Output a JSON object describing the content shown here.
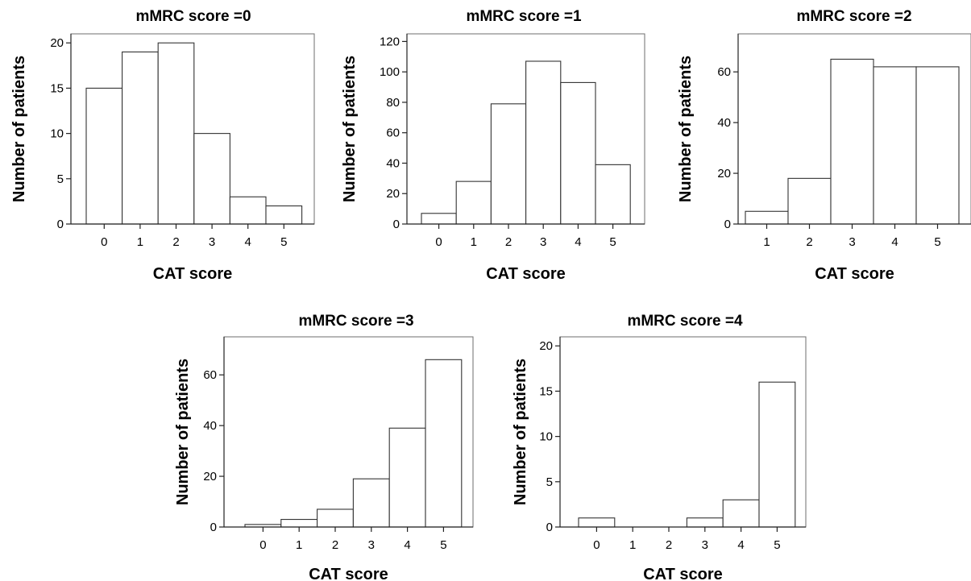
{
  "chart_data": [
    {
      "type": "bar",
      "title": "mMRC score =0",
      "xlabel": "CAT score",
      "ylabel": "Number of patients",
      "categories": [
        "0",
        "1",
        "2",
        "3",
        "4",
        "5"
      ],
      "values": [
        15,
        19,
        20,
        10,
        3,
        2
      ],
      "ylim": [
        0,
        21
      ],
      "yticks": [
        0,
        5,
        10,
        15,
        20
      ]
    },
    {
      "type": "bar",
      "title": "mMRC score =1",
      "xlabel": "CAT score",
      "ylabel": "Number of patients",
      "categories": [
        "0",
        "1",
        "2",
        "3",
        "4",
        "5"
      ],
      "values": [
        7,
        28,
        79,
        107,
        93,
        39
      ],
      "ylim": [
        0,
        125
      ],
      "yticks": [
        0,
        20,
        40,
        60,
        80,
        100,
        120
      ]
    },
    {
      "type": "bar",
      "title": "mMRC score =2",
      "xlabel": "CAT score",
      "ylabel": "Number of patients",
      "categories": [
        "1",
        "2",
        "3",
        "4",
        "5"
      ],
      "values": [
        5,
        18,
        65,
        62,
        62
      ],
      "ylim": [
        0,
        75
      ],
      "yticks": [
        0,
        20,
        40,
        60
      ]
    },
    {
      "type": "bar",
      "title": "mMRC score =3",
      "xlabel": "CAT score",
      "ylabel": "Number of patients",
      "categories": [
        "0",
        "1",
        "2",
        "3",
        "4",
        "5"
      ],
      "values": [
        1,
        3,
        7,
        19,
        39,
        66
      ],
      "ylim": [
        0,
        75
      ],
      "yticks": [
        0,
        20,
        40,
        60
      ]
    },
    {
      "type": "bar",
      "title": "mMRC score =4",
      "xlabel": "CAT score",
      "ylabel": "Number of patients",
      "categories": [
        "0",
        "1",
        "2",
        "3",
        "4",
        "5"
      ],
      "values": [
        1,
        0,
        0,
        1,
        3,
        16
      ],
      "ylim": [
        0,
        21
      ],
      "yticks": [
        0,
        5,
        10,
        15,
        20
      ]
    }
  ]
}
